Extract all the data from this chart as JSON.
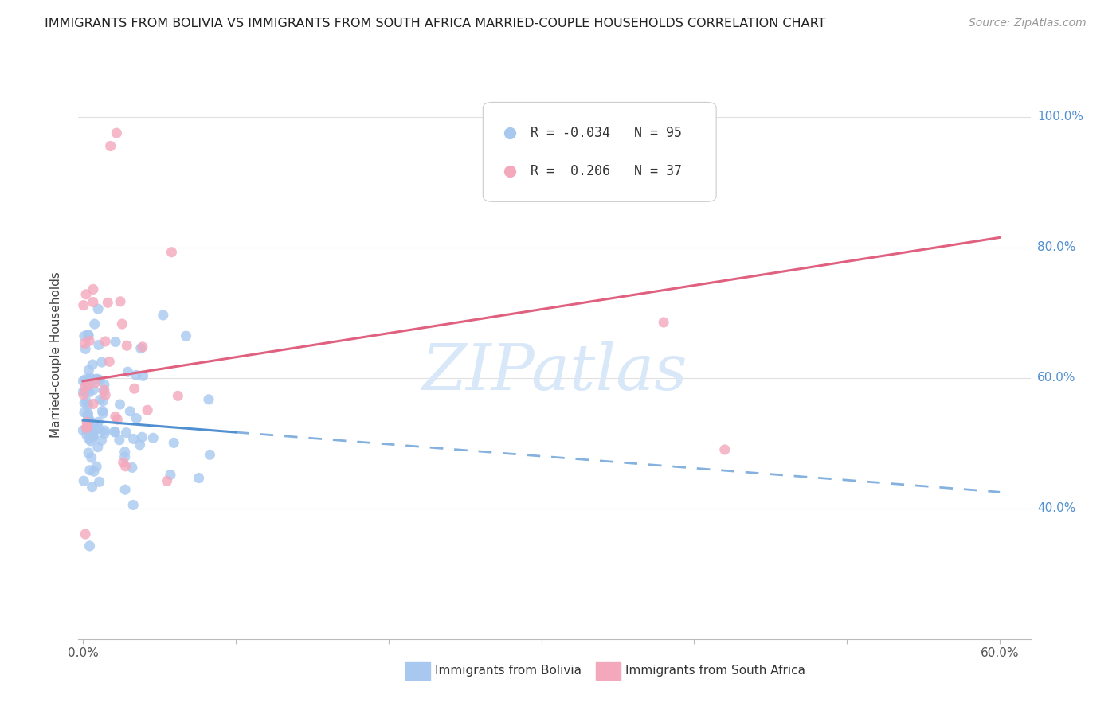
{
  "title": "IMMIGRANTS FROM BOLIVIA VS IMMIGRANTS FROM SOUTH AFRICA MARRIED-COUPLE HOUSEHOLDS CORRELATION CHART",
  "source": "Source: ZipAtlas.com",
  "ylabel": "Married-couple Households",
  "xlabel_bolivia": "Immigrants from Bolivia",
  "xlabel_southafrica": "Immigrants from South Africa",
  "bolivia_color": "#a8c8f0",
  "southafrica_color": "#f4a8bc",
  "bolivia_line_color": "#5090d0",
  "southafrica_line_color": "#e06080",
  "R_bolivia": -0.034,
  "N_bolivia": 95,
  "R_southafrica": 0.206,
  "N_southafrica": 37,
  "watermark_color": "#d8e8f8",
  "right_label_color": "#5090d0",
  "bottom_label_color_bolivia": "#5090d0",
  "bottom_label_color_sa": "#e06080"
}
